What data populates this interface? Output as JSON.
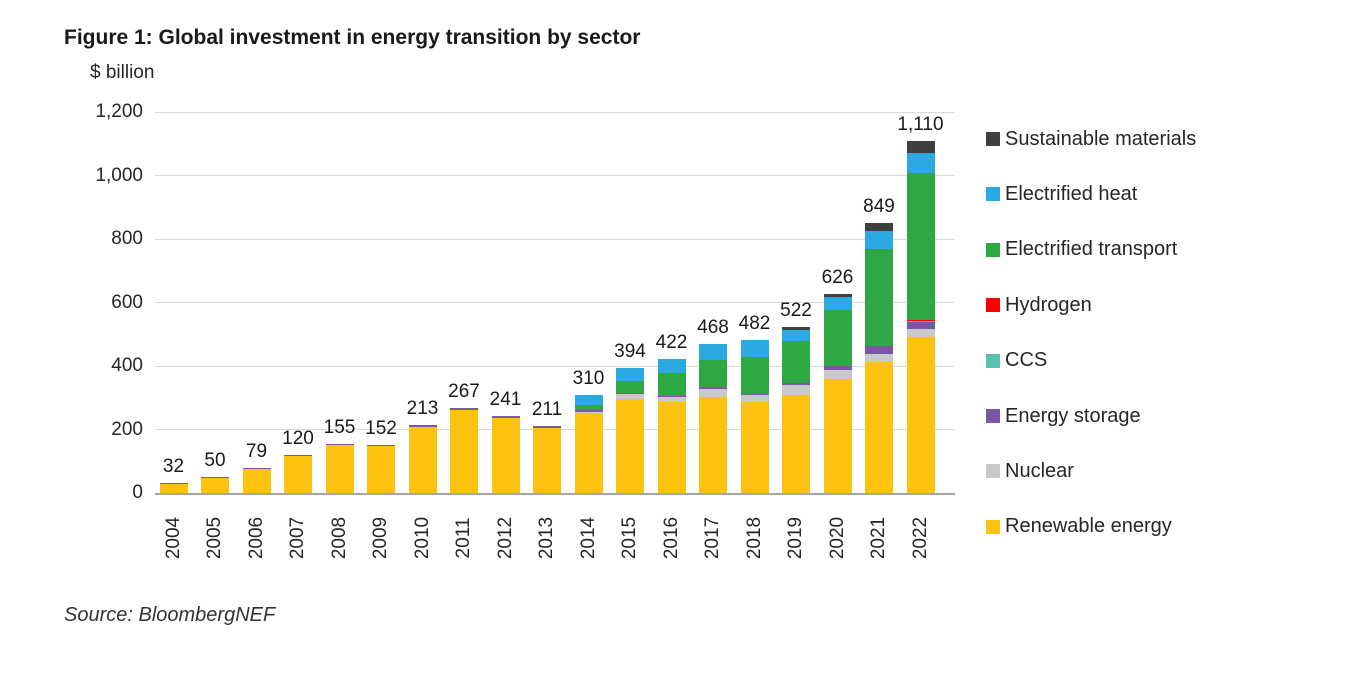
{
  "chart_data": {
    "type": "bar",
    "subtype": "stacked",
    "title": "Figure 1: Global investment in energy transition by sector",
    "y_unit": "$ billion",
    "source": "Source: BloombergNEF",
    "ylim": [
      0,
      1200
    ],
    "grid": "horizontal",
    "legend_position": "right",
    "yticks": [
      {
        "value": 0,
        "label": "0"
      },
      {
        "value": 200,
        "label": "200"
      },
      {
        "value": 400,
        "label": "400"
      },
      {
        "value": 600,
        "label": "600"
      },
      {
        "value": 800,
        "label": "800"
      },
      {
        "value": 1000,
        "label": "1,000"
      },
      {
        "value": 1200,
        "label": "1,200"
      }
    ],
    "categories": [
      "2004",
      "2005",
      "2006",
      "2007",
      "2008",
      "2009",
      "2010",
      "2011",
      "2012",
      "2013",
      "2014",
      "2015",
      "2016",
      "2017",
      "2018",
      "2019",
      "2020",
      "2021",
      "2022"
    ],
    "totals": [
      32,
      50,
      79,
      120,
      155,
      152,
      213,
      267,
      241,
      211,
      310,
      394,
      422,
      468,
      482,
      522,
      626,
      849,
      1110
    ],
    "total_labels": [
      "32",
      "50",
      "79",
      "120",
      "155",
      "152",
      "213",
      "267",
      "241",
      "211",
      "310",
      "394",
      "422",
      "468",
      "482",
      "522",
      "626",
      "849",
      "1,110"
    ],
    "series": [
      {
        "name": "Renewable energy",
        "color": "#FDC210",
        "values": [
          30,
          47,
          76,
          116,
          151,
          148,
          209,
          262,
          236,
          205,
          251,
          297,
          288,
          302,
          288,
          310,
          360,
          412,
          490
        ]
      },
      {
        "name": "Nuclear",
        "color": "#C9C9C9",
        "values": [
          0,
          0,
          0,
          0,
          0,
          0,
          0,
          0,
          0,
          0,
          5,
          14,
          15,
          25,
          21,
          30,
          26,
          27,
          27
        ]
      },
      {
        "name": "Energy storage",
        "color": "#7C56A5",
        "values": [
          2,
          3,
          3,
          4,
          4,
          4,
          4,
          5,
          5,
          6,
          4,
          4,
          4,
          8,
          4,
          5,
          13,
          23,
          25
        ]
      },
      {
        "name": "CCS",
        "color": "#5BBFAD",
        "values": [
          0,
          0,
          0,
          0,
          0,
          0,
          0,
          0,
          0,
          0,
          0,
          0,
          0,
          0,
          0,
          0,
          0,
          0,
          1
        ]
      },
      {
        "name": "Hydrogen",
        "color": "#FF0000",
        "values": [
          0,
          0,
          0,
          0,
          0,
          0,
          0,
          0,
          0,
          0,
          0,
          0,
          0,
          0,
          0,
          0,
          0,
          0,
          1
        ]
      },
      {
        "name": "Electrified transport",
        "color": "#2EA843",
        "values": [
          0,
          0,
          0,
          0,
          0,
          0,
          0,
          0,
          0,
          0,
          16,
          37,
          70,
          84,
          116,
          133,
          177,
          306,
          465
        ]
      },
      {
        "name": "Electrified heat",
        "color": "#2BAAE2",
        "values": [
          0,
          0,
          0,
          0,
          0,
          0,
          0,
          0,
          0,
          0,
          34,
          42,
          45,
          49,
          53,
          36,
          40,
          57,
          62
        ]
      },
      {
        "name": "Sustainable materials",
        "color": "#3F3F3F",
        "values": [
          0,
          0,
          0,
          0,
          0,
          0,
          0,
          0,
          0,
          0,
          0,
          0,
          0,
          0,
          0,
          8,
          10,
          24,
          39
        ]
      }
    ],
    "legend_order": [
      "Sustainable materials",
      "Electrified heat",
      "Electrified transport",
      "Hydrogen",
      "CCS",
      "Energy storage",
      "Nuclear",
      "Renewable energy"
    ],
    "colors": {
      "gridline": "#d9d9d9",
      "axis_line": "#a6a6a6",
      "text": "#262626"
    }
  }
}
